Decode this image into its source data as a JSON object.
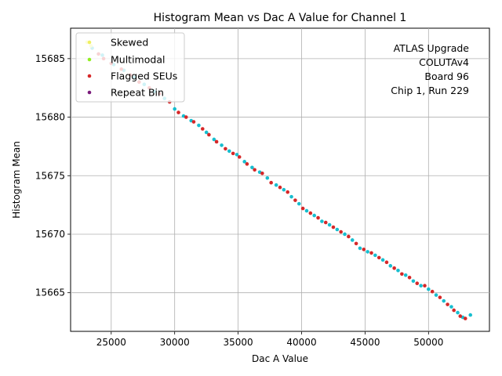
{
  "chart_data": {
    "type": "scatter",
    "title": "Histogram Mean vs Dac A Value for Channel 1",
    "xlabel": "Dac A Value",
    "ylabel": "Histogram Mean",
    "xlim": [
      21800,
      54800
    ],
    "ylim": [
      15661.7,
      15687.6
    ],
    "xticks": [
      25000,
      30000,
      35000,
      40000,
      45000,
      50000
    ],
    "yticks": [
      15665,
      15670,
      15675,
      15680,
      15685
    ],
    "grid": true,
    "legend_position": "top-left",
    "annotation": [
      "ATLAS Upgrade",
      "COLUTAv4",
      "Board 96",
      "Chip 1, Run 229"
    ],
    "series": [
      {
        "name": "Skewed",
        "color": "#f0f060",
        "points": [
          [
            23100,
            15686.4
          ],
          [
            23400,
            15686.1
          ]
        ]
      },
      {
        "name": "Multimodal",
        "color": "#90ee20",
        "points": []
      },
      {
        "name": "Flagged SEUs",
        "color": "#d62728",
        "points": [
          [
            24000,
            15685.4
          ],
          [
            24400,
            15685.0
          ],
          [
            25000,
            15684.6
          ],
          [
            25800,
            15684.1
          ],
          [
            26500,
            15683.6
          ],
          [
            27200,
            15683.0
          ],
          [
            28000,
            15682.5
          ],
          [
            28800,
            15682.0
          ],
          [
            29600,
            15681.3
          ],
          [
            30300,
            15680.4
          ],
          [
            30900,
            15680.0
          ],
          [
            31500,
            15679.6
          ],
          [
            32200,
            15679.0
          ],
          [
            32700,
            15678.5
          ],
          [
            33300,
            15677.9
          ],
          [
            34000,
            15677.3
          ],
          [
            34600,
            15676.9
          ],
          [
            35100,
            15676.6
          ],
          [
            35700,
            15676.0
          ],
          [
            36300,
            15675.5
          ],
          [
            36900,
            15675.2
          ],
          [
            37600,
            15674.4
          ],
          [
            38300,
            15674.0
          ],
          [
            38900,
            15673.6
          ],
          [
            39500,
            15672.9
          ],
          [
            40100,
            15672.2
          ],
          [
            40700,
            15671.8
          ],
          [
            41300,
            15671.4
          ],
          [
            41900,
            15671.0
          ],
          [
            42500,
            15670.6
          ],
          [
            43100,
            15670.2
          ],
          [
            43700,
            15669.8
          ],
          [
            44300,
            15669.2
          ],
          [
            44900,
            15668.7
          ],
          [
            45500,
            15668.4
          ],
          [
            46100,
            15668.0
          ],
          [
            46700,
            15667.6
          ],
          [
            47300,
            15667.1
          ],
          [
            47900,
            15666.6
          ],
          [
            48500,
            15666.3
          ],
          [
            49100,
            15665.8
          ],
          [
            49700,
            15665.6
          ],
          [
            50300,
            15665.1
          ],
          [
            50900,
            15664.6
          ],
          [
            51500,
            15664.0
          ],
          [
            52000,
            15663.5
          ],
          [
            52500,
            15663.0
          ],
          [
            52900,
            15662.8
          ]
        ]
      },
      {
        "name": "Repeat Bin",
        "color": "#7a1a7a",
        "points": []
      },
      {
        "name": "",
        "color": "#17becf",
        "points": [
          [
            23500,
            15685.9
          ],
          [
            24300,
            15685.3
          ],
          [
            25200,
            15684.5
          ],
          [
            26000,
            15684.0
          ],
          [
            26800,
            15683.4
          ],
          [
            27600,
            15682.8
          ],
          [
            28400,
            15682.2
          ],
          [
            29200,
            15681.6
          ],
          [
            30000,
            15680.7
          ],
          [
            30700,
            15680.1
          ],
          [
            31300,
            15679.7
          ],
          [
            31900,
            15679.3
          ],
          [
            32500,
            15678.7
          ],
          [
            33100,
            15678.1
          ],
          [
            33700,
            15677.6
          ],
          [
            34300,
            15677.1
          ],
          [
            34900,
            15676.8
          ],
          [
            35500,
            15676.2
          ],
          [
            36100,
            15675.7
          ],
          [
            36700,
            15675.3
          ],
          [
            37300,
            15674.8
          ],
          [
            38000,
            15674.2
          ],
          [
            38600,
            15673.8
          ],
          [
            39200,
            15673.2
          ],
          [
            39800,
            15672.6
          ],
          [
            40400,
            15672.0
          ],
          [
            41000,
            15671.6
          ],
          [
            41600,
            15671.1
          ],
          [
            42200,
            15670.8
          ],
          [
            42800,
            15670.4
          ],
          [
            43400,
            15670.0
          ],
          [
            44000,
            15669.5
          ],
          [
            44600,
            15668.8
          ],
          [
            45200,
            15668.5
          ],
          [
            45800,
            15668.2
          ],
          [
            46400,
            15667.8
          ],
          [
            47000,
            15667.3
          ],
          [
            47600,
            15666.9
          ],
          [
            48200,
            15666.5
          ],
          [
            48800,
            15666.0
          ],
          [
            49400,
            15665.6
          ],
          [
            50000,
            15665.3
          ],
          [
            50600,
            15664.8
          ],
          [
            51200,
            15664.3
          ],
          [
            51800,
            15663.8
          ],
          [
            52300,
            15663.3
          ],
          [
            52700,
            15662.9
          ],
          [
            53300,
            15663.1
          ]
        ]
      }
    ]
  }
}
